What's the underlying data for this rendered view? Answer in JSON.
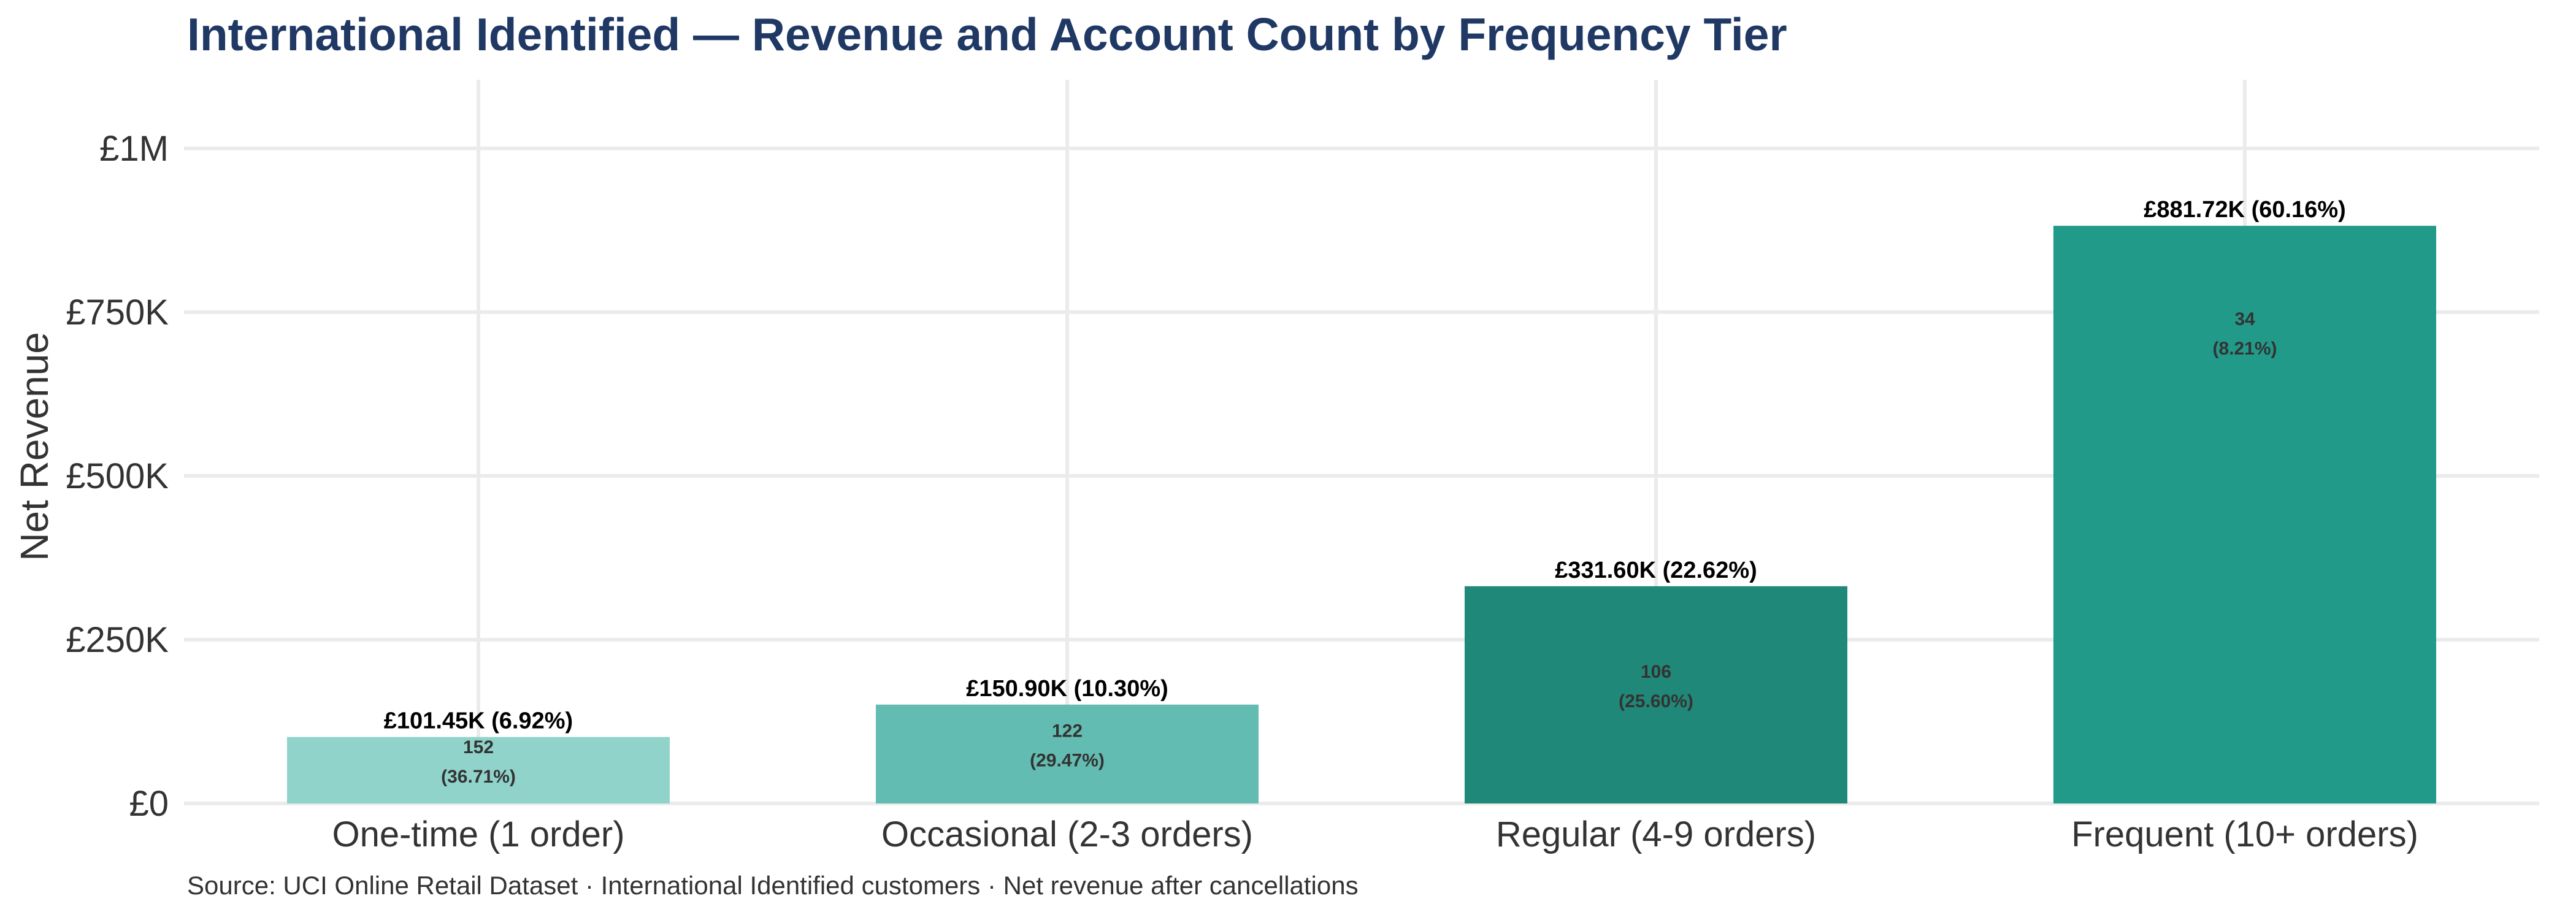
{
  "colors": {
    "title": "#1f3864",
    "text": "#333333",
    "grid": "#ebebeb",
    "bars": [
      "#90d3cb",
      "#63bcb1",
      "#208878",
      "#219a8a"
    ]
  },
  "chart_data": {
    "type": "bar",
    "title": "International Identified — Revenue and Account Count by Frequency Tier",
    "xlabel": "",
    "ylabel": "Net Revenue",
    "categories": [
      "One-time (1 order)",
      "Occasional (2-3 orders)",
      "Regular (4-9 orders)",
      "Frequent (10+ orders)"
    ],
    "values": [
      101450,
      150900,
      331600,
      881720
    ],
    "value_labels": [
      "£101.45K (6.92%)",
      "£150.90K (10.30%)",
      "£331.60K (22.62%)",
      "£881.72K (60.16%)"
    ],
    "account_counts": [
      "152",
      "122",
      "106",
      "34"
    ],
    "account_shares": [
      "(36.71%)",
      "(29.47%)",
      "(25.60%)",
      "(8.21%)"
    ],
    "yticks": [
      0,
      250000,
      500000,
      750000,
      1000000
    ],
    "ytick_labels": [
      "£0",
      "£250K",
      "£500K",
      "£750K",
      "£1M"
    ],
    "ylim": [
      0,
      1100000
    ],
    "grid": true,
    "legend": "none",
    "caption": "Source: UCI Online Retail Dataset · International Identified customers · Net revenue after cancellations"
  }
}
